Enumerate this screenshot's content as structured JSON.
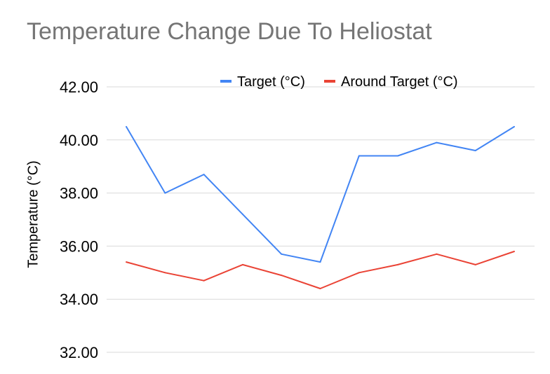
{
  "chart_data": {
    "type": "line",
    "title": "Temperature Change Due To Heliostat",
    "xlabel": "",
    "ylabel": "Temperature (°C)",
    "ylim": [
      32,
      42
    ],
    "yticks": [
      "32.00",
      "34.00",
      "36.00",
      "38.00",
      "40.00",
      "42.00"
    ],
    "grid": true,
    "legend_position": "top",
    "series": [
      {
        "name": "Target (°C)",
        "color": "#4285F4",
        "values": [
          40.5,
          38.0,
          38.7,
          37.2,
          35.7,
          35.4,
          39.4,
          39.4,
          39.9,
          39.6,
          40.5
        ]
      },
      {
        "name": "Around Target (°C)",
        "color": "#EA4335",
        "values": [
          35.4,
          35.0,
          34.7,
          35.3,
          34.9,
          34.4,
          35.0,
          35.3,
          35.7,
          35.3,
          35.8
        ]
      }
    ]
  }
}
